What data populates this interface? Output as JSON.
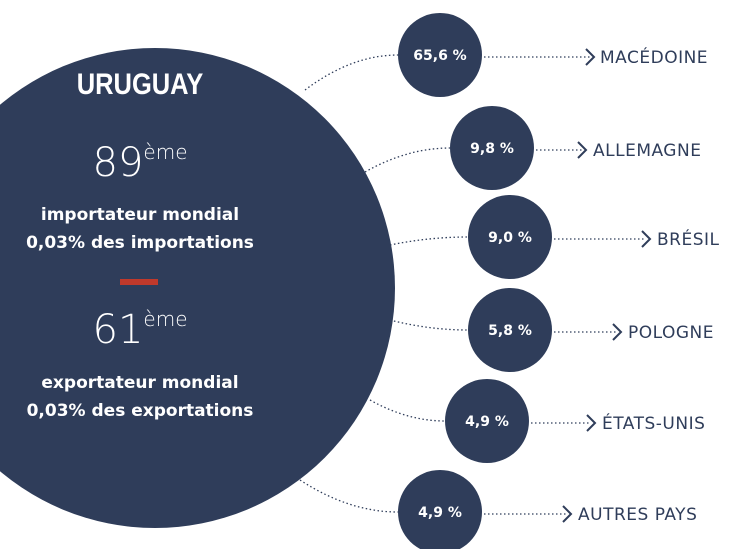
{
  "title": "URUGUAY",
  "import": {
    "rank": "89",
    "suffix": "ème",
    "line1": "importateur mondial",
    "line2": "0,03% des importations"
  },
  "export": {
    "rank": "61",
    "suffix": "ème",
    "line1": "exportateur mondial",
    "line2": "0,03% des exportations"
  },
  "items": [
    {
      "share": "65,6 %",
      "country": "MACÉDOINE"
    },
    {
      "share": "9,8 %",
      "country": "ALLEMAGNE"
    },
    {
      "share": "9,0 %",
      "country": "BRÉSIL"
    },
    {
      "share": "5,8 %",
      "country": "POLOGNE"
    },
    {
      "share": "4,9 %",
      "country": "ÉTATS-UNIS"
    },
    {
      "share": "4,9 %",
      "country": "AUTRES PAYS"
    }
  ]
}
